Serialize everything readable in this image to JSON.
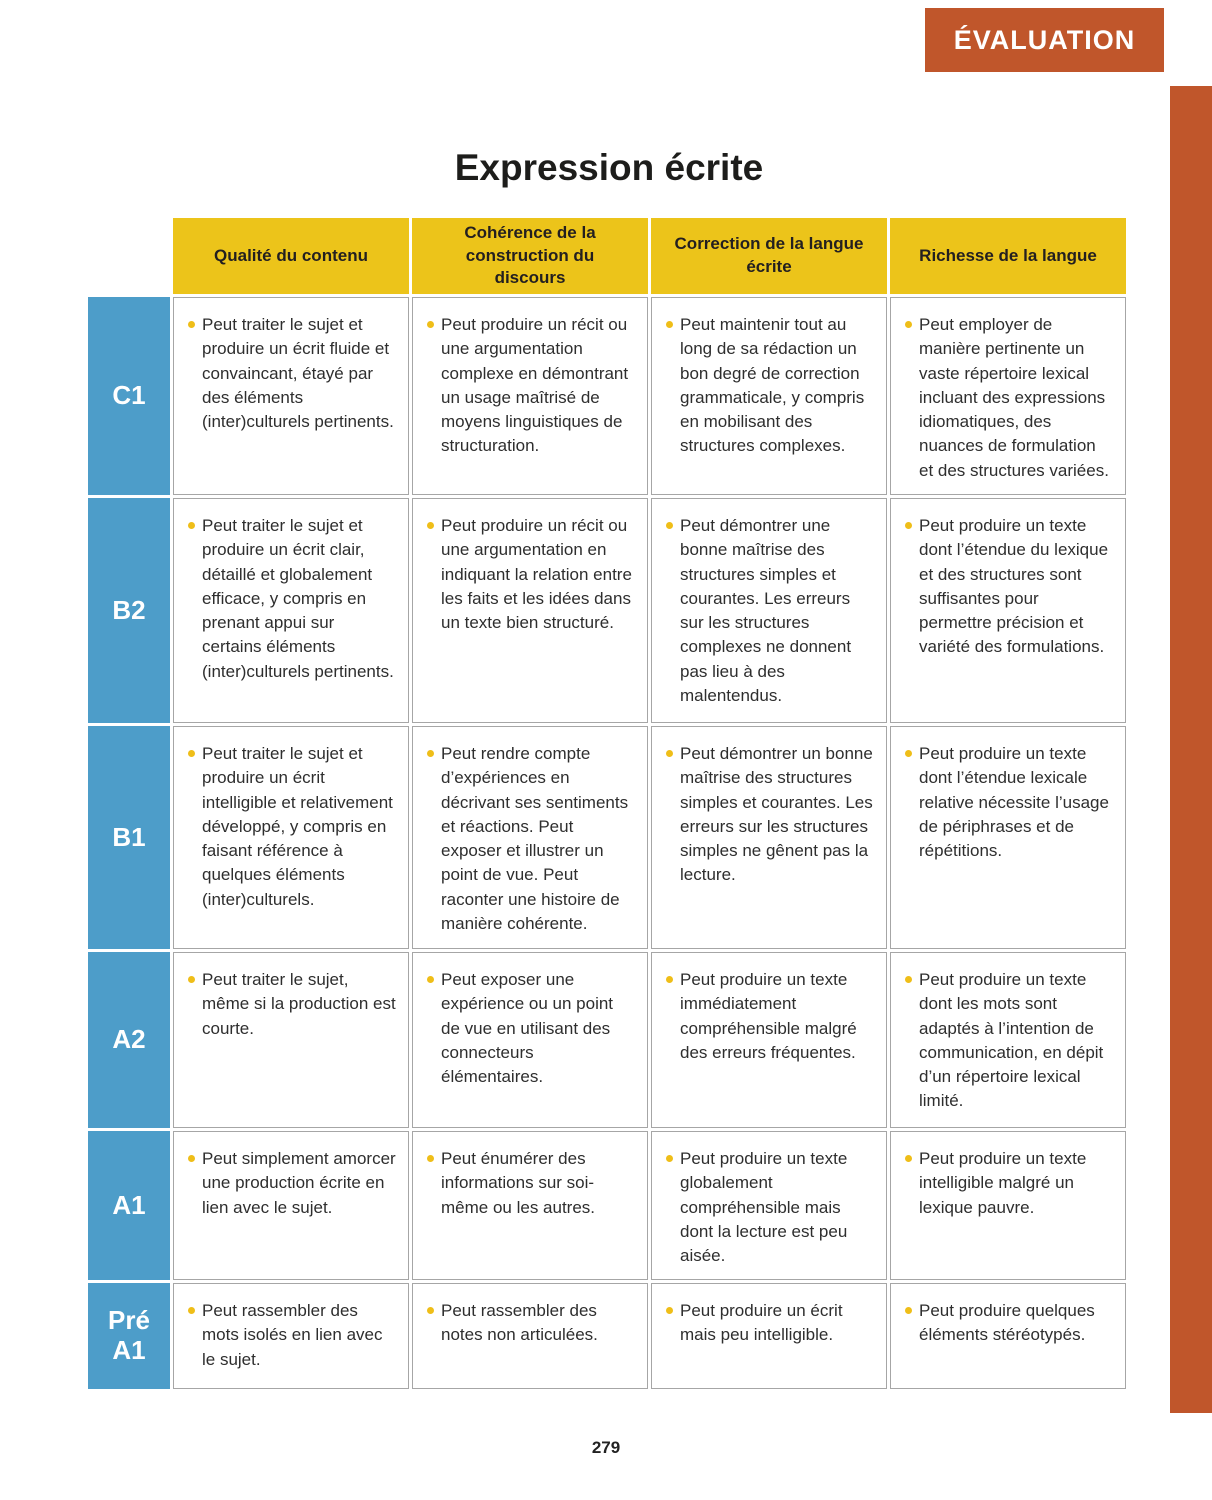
{
  "page": {
    "banner": "ÉVALUATION",
    "title": "Expression écrite",
    "page_number": "279"
  },
  "colors": {
    "accent_orange": "#C0562B",
    "header_yellow": "#ECC41A",
    "level_blue": "#4D9DC9",
    "bullet_yellow": "#EFBE18"
  },
  "table": {
    "columns": [
      "Qualité du contenu",
      "Cohérence de la construction du discours",
      "Correction de la langue écrite",
      "Richesse de la langue"
    ],
    "rows": [
      {
        "level": "C1",
        "cells": [
          "Peut traiter le sujet et produire un écrit fluide et convaincant, étayé par des éléments (inter)culturels pertinents.",
          "Peut produire un récit ou une argumentation complexe en démontrant un usage maîtrisé de moyens linguistiques de structuration.",
          "Peut maintenir tout au long de sa rédaction un bon degré de correction grammaticale, y compris en mobilisant des structures complexes.",
          "Peut employer de manière pertinente un vaste répertoire lexical incluant des expressions idiomatiques, des nuances de formulation et des structures variées."
        ]
      },
      {
        "level": "B2",
        "cells": [
          "Peut traiter le sujet et produire un écrit clair, détaillé et globalement efficace, y compris en prenant appui sur certains éléments (inter)culturels pertinents.",
          "Peut produire un récit ou une argumentation en indiquant la relation entre les faits et les idées dans un texte bien structuré.",
          "Peut démontrer une bonne maîtrise des structures simples et courantes. Les erreurs sur les structures complexes ne donnent pas lieu à des malentendus.",
          "Peut produire un texte dont l’étendue du lexique et des structures sont suffisantes pour permettre précision et variété des formulations."
        ]
      },
      {
        "level": "B1",
        "cells": [
          "Peut traiter le sujet et produire un écrit intelligible et relativement développé, y compris en faisant référence à quelques éléments (inter)culturels.",
          "Peut rendre compte d’expériences en décrivant ses sentiments et réactions. Peut exposer et illustrer un point de vue. Peut raconter une histoire de manière cohérente.",
          "Peut démontrer un bonne maîtrise des structures simples et courantes. Les erreurs sur les structures simples ne gênent pas la lecture.",
          "Peut produire un texte dont l’étendue lexicale relative nécessite l’usage de périphrases et de répétitions."
        ]
      },
      {
        "level": "A2",
        "cells": [
          "Peut traiter le sujet, même si la production est courte.",
          "Peut exposer une expérience ou un point de vue en utilisant des connecteurs élémentaires.",
          "Peut produire un texte immédiatement compréhensible malgré des erreurs fréquentes.",
          "Peut produire un texte dont les mots sont adaptés à l’intention de communication, en dépit d’un répertoire lexical limité."
        ]
      },
      {
        "level": "A1",
        "cells": [
          "Peut simplement amorcer une production écrite en lien avec le sujet.",
          "Peut énumérer des informations sur soi-même ou les autres.",
          "Peut produire un texte globalement compréhensible mais dont la lecture est peu aisée.",
          "Peut produire un texte intelligible malgré un lexique pauvre."
        ]
      },
      {
        "level": "Pré A1",
        "cells": [
          "Peut rassembler des mots isolés en lien avec le sujet.",
          "Peut rassembler des notes non articulées.",
          "Peut produire un écrit mais peu intelligible.",
          "Peut produire quelques éléments stéréotypés."
        ]
      }
    ]
  }
}
